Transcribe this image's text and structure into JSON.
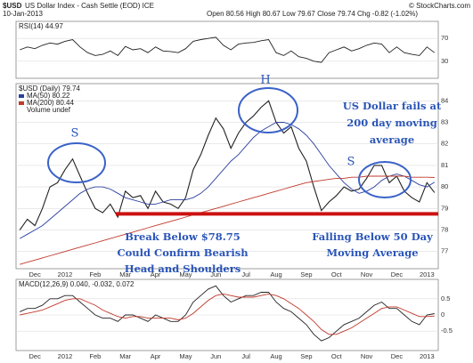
{
  "chart_data": {
    "type": "line",
    "symbol": "$USD",
    "title": "US Dollar Index - Cash Settle (EOD) ICE",
    "date": "10-Jan-2013",
    "quote": "Open 80.56 High 80.67 Low 79.67 Close 79.74 Chg -0.82 (-1.02%)",
    "source": "© StockCharts.com",
    "main_label": "$USD (Daily) 79.74",
    "categories": [
      null,
      null,
      "Dec",
      null,
      null,
      null,
      "2012",
      null,
      null,
      null,
      "Feb",
      null,
      null,
      null,
      "Mar",
      null,
      null,
      null,
      "Apr",
      null,
      null,
      null,
      "May",
      null,
      null,
      null,
      "Jun",
      null,
      null,
      null,
      "Jul",
      null,
      null,
      null,
      "Aug",
      null,
      null,
      null,
      "Sep",
      null,
      null,
      null,
      "Oct",
      null,
      null,
      null,
      "Nov",
      null,
      null,
      null,
      "Dec",
      null,
      null,
      null,
      "2013",
      null
    ],
    "series": [
      {
        "name": "$USD (Daily) 79.74",
        "color": "#222222",
        "values": [
          78.0,
          78.5,
          78.2,
          79.0,
          80.0,
          80.2,
          80.8,
          81.3,
          80.5,
          79.7,
          79.0,
          78.8,
          79.2,
          78.6,
          79.8,
          79.5,
          79.6,
          79.0,
          79.8,
          79.3,
          79.2,
          79.0,
          79.5,
          80.8,
          81.5,
          82.4,
          83.2,
          82.7,
          81.8,
          82.5,
          83.0,
          83.3,
          83.7,
          84.0,
          83.0,
          82.5,
          82.8,
          81.8,
          81.2,
          80.0,
          78.9,
          79.3,
          79.6,
          80.0,
          79.8,
          79.9,
          80.4,
          81.0,
          81.0,
          80.2,
          80.5,
          79.8,
          79.5,
          79.3,
          80.2,
          79.74
        ]
      },
      {
        "name": "MA(50) 80.22",
        "color": "#2b3f9e",
        "values": [
          77.6,
          77.8,
          78.0,
          78.2,
          78.5,
          78.8,
          79.1,
          79.4,
          79.7,
          79.9,
          80.0,
          80.0,
          79.9,
          79.7,
          79.5,
          79.4,
          79.3,
          79.2,
          79.2,
          79.3,
          79.4,
          79.4,
          79.4,
          79.5,
          79.7,
          80.0,
          80.4,
          80.8,
          81.2,
          81.5,
          81.9,
          82.3,
          82.6,
          82.8,
          83.0,
          83.0,
          82.9,
          82.7,
          82.4,
          82.0,
          81.5,
          81.0,
          80.6,
          80.2,
          79.9,
          79.7,
          79.8,
          80.0,
          80.3,
          80.5,
          80.6,
          80.5,
          80.3,
          80.1,
          80.0,
          80.22
        ]
      },
      {
        "name": "MA(200) 80.44",
        "color": "#c0392b",
        "values": [
          76.4,
          76.5,
          76.6,
          76.7,
          76.8,
          76.9,
          77.0,
          77.1,
          77.2,
          77.3,
          77.4,
          77.5,
          77.6,
          77.7,
          77.8,
          77.9,
          78.0,
          78.1,
          78.2,
          78.3,
          78.4,
          78.5,
          78.6,
          78.7,
          78.8,
          78.9,
          79.0,
          79.1,
          79.2,
          79.3,
          79.4,
          79.5,
          79.6,
          79.7,
          79.8,
          79.9,
          80.0,
          80.1,
          80.2,
          80.25,
          80.3,
          80.35,
          80.4,
          80.4,
          80.45,
          80.45,
          80.5,
          80.5,
          80.5,
          80.5,
          80.5,
          80.5,
          80.45,
          80.45,
          80.45,
          80.44
        ]
      }
    ],
    "volume_label": "Volume undef",
    "ylim": [
      76.2,
      84.8
    ],
    "yticks": [
      77,
      78,
      79,
      80,
      81,
      82,
      83,
      84
    ],
    "hline": {
      "value": 78.75,
      "color": "#cc1111"
    },
    "rsi": {
      "name": "RSI(14) 44.97",
      "color": "#222222",
      "ylim": [
        0,
        100
      ],
      "yticks": [
        30,
        70
      ],
      "values": [
        50,
        55,
        52,
        58,
        62,
        60,
        65,
        68,
        55,
        45,
        40,
        42,
        48,
        40,
        56,
        50,
        52,
        45,
        55,
        48,
        47,
        45,
        52,
        65,
        68,
        70,
        72,
        58,
        50,
        60,
        62,
        63,
        66,
        68,
        45,
        40,
        48,
        38,
        35,
        30,
        28,
        45,
        50,
        55,
        48,
        52,
        58,
        62,
        60,
        45,
        55,
        45,
        42,
        40,
        55,
        44.97
      ]
    },
    "macd": {
      "name": "MACD(12,26,9) 0.040, -0.032, 0.072",
      "ylim": [
        -1.1,
        1.1
      ],
      "yticks": [
        -0.5,
        0,
        0.5
      ],
      "series": [
        {
          "name": "MACD",
          "color": "#222222",
          "values": [
            0.1,
            0.2,
            0.2,
            0.3,
            0.5,
            0.5,
            0.6,
            0.6,
            0.4,
            0.2,
            0.0,
            -0.1,
            -0.1,
            -0.2,
            0.0,
            0.0,
            -0.1,
            -0.2,
            0.0,
            -0.1,
            -0.2,
            -0.2,
            0.0,
            0.4,
            0.6,
            0.8,
            0.9,
            0.6,
            0.4,
            0.5,
            0.6,
            0.6,
            0.7,
            0.7,
            0.4,
            0.2,
            0.1,
            -0.1,
            -0.3,
            -0.6,
            -0.8,
            -0.7,
            -0.5,
            -0.3,
            -0.2,
            -0.1,
            0.1,
            0.3,
            0.4,
            0.2,
            0.2,
            0.0,
            -0.2,
            -0.3,
            0.0,
            0.04
          ]
        },
        {
          "name": "Signal",
          "color": "#c0392b",
          "values": [
            0.0,
            0.05,
            0.1,
            0.15,
            0.25,
            0.35,
            0.45,
            0.5,
            0.5,
            0.4,
            0.3,
            0.15,
            0.05,
            -0.05,
            -0.1,
            -0.05,
            -0.05,
            -0.1,
            -0.1,
            -0.1,
            -0.1,
            -0.15,
            -0.1,
            0.05,
            0.25,
            0.45,
            0.6,
            0.65,
            0.6,
            0.55,
            0.55,
            0.55,
            0.6,
            0.65,
            0.6,
            0.5,
            0.35,
            0.2,
            0.0,
            -0.2,
            -0.45,
            -0.6,
            -0.6,
            -0.5,
            -0.4,
            -0.25,
            -0.1,
            0.05,
            0.2,
            0.25,
            0.25,
            0.15,
            0.05,
            -0.05,
            -0.05,
            -0.032
          ]
        }
      ]
    },
    "annotations": {
      "left_shoulder": "S",
      "head": "H",
      "right_shoulder": "S",
      "break_text": [
        "Break Below $78.75",
        "Could Confirm Bearish",
        "Head and Shoulders"
      ],
      "fail_text": [
        "US Dollar fails at",
        "200 day moving",
        "average"
      ],
      "fall_text": [
        "Falling Below 50 Day",
        "Moving Average"
      ]
    }
  }
}
